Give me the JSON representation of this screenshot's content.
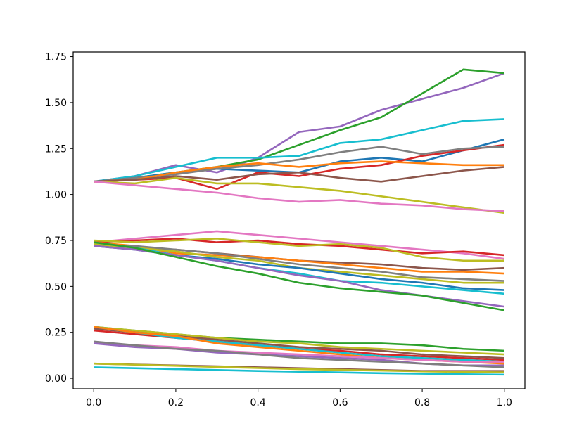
{
  "chart_data": {
    "type": "line",
    "title": "",
    "xlabel": "",
    "ylabel": "",
    "xlim": [
      -0.05,
      1.05
    ],
    "ylim": [
      -0.057,
      1.775
    ],
    "x_ticks": [
      0.0,
      0.2,
      0.4,
      0.6,
      0.8,
      1.0
    ],
    "x_tick_labels": [
      "0.0",
      "0.2",
      "0.4",
      "0.6",
      "0.8",
      "1.0"
    ],
    "y_ticks": [
      0.0,
      0.25,
      0.5,
      0.75,
      1.0,
      1.25,
      1.5,
      1.75
    ],
    "y_tick_labels": [
      "0.00",
      "0.25",
      "0.50",
      "0.75",
      "1.00",
      "1.25",
      "1.50",
      "1.75"
    ],
    "grid": false,
    "legend": "none",
    "palette": [
      "#1f77b4",
      "#ff7f0e",
      "#2ca02c",
      "#d62728",
      "#9467bd",
      "#8c564b",
      "#e377c2",
      "#7f7f7f",
      "#bcbd22",
      "#17becf"
    ],
    "x": [
      0.0,
      0.1,
      0.2,
      0.3,
      0.4,
      0.5,
      0.6,
      0.7,
      0.8,
      0.9,
      1.0
    ],
    "series": [
      {
        "color": "#9467bd",
        "values": [
          1.07,
          1.1,
          1.16,
          1.12,
          1.2,
          1.34,
          1.37,
          1.46,
          1.52,
          1.58,
          1.66
        ]
      },
      {
        "color": "#2ca02c",
        "values": [
          1.07,
          1.09,
          1.12,
          1.15,
          1.19,
          1.27,
          1.35,
          1.42,
          1.55,
          1.68,
          1.66
        ]
      },
      {
        "color": "#17becf",
        "values": [
          1.07,
          1.1,
          1.15,
          1.2,
          1.2,
          1.21,
          1.28,
          1.3,
          1.35,
          1.4,
          1.41
        ]
      },
      {
        "color": "#1f77b4",
        "values": [
          1.07,
          1.09,
          1.12,
          1.14,
          1.13,
          1.12,
          1.18,
          1.2,
          1.18,
          1.24,
          1.3
        ]
      },
      {
        "color": "#d62728",
        "values": [
          1.07,
          1.08,
          1.09,
          1.03,
          1.12,
          1.1,
          1.14,
          1.16,
          1.21,
          1.24,
          1.27
        ]
      },
      {
        "color": "#7f7f7f",
        "values": [
          1.07,
          1.09,
          1.11,
          1.14,
          1.16,
          1.19,
          1.23,
          1.26,
          1.22,
          1.25,
          1.26
        ]
      },
      {
        "color": "#ff7f0e",
        "values": [
          1.07,
          1.08,
          1.12,
          1.15,
          1.17,
          1.15,
          1.17,
          1.18,
          1.17,
          1.16,
          1.16
        ]
      },
      {
        "color": "#8c564b",
        "values": [
          1.07,
          1.08,
          1.1,
          1.08,
          1.11,
          1.12,
          1.09,
          1.07,
          1.1,
          1.13,
          1.15
        ]
      },
      {
        "color": "#bcbd22",
        "values": [
          1.07,
          1.06,
          1.09,
          1.06,
          1.06,
          1.04,
          1.02,
          0.99,
          0.96,
          0.93,
          0.9
        ]
      },
      {
        "color": "#e377c2",
        "values": [
          1.07,
          1.05,
          1.03,
          1.01,
          0.98,
          0.96,
          0.97,
          0.95,
          0.94,
          0.92,
          0.91
        ]
      },
      {
        "color": "#e377c2",
        "values": [
          0.74,
          0.76,
          0.78,
          0.8,
          0.78,
          0.76,
          0.74,
          0.72,
          0.7,
          0.68,
          0.65
        ]
      },
      {
        "color": "#d62728",
        "values": [
          0.74,
          0.75,
          0.76,
          0.74,
          0.75,
          0.73,
          0.72,
          0.7,
          0.68,
          0.69,
          0.67
        ]
      },
      {
        "color": "#bcbd22",
        "values": [
          0.75,
          0.74,
          0.75,
          0.76,
          0.74,
          0.72,
          0.73,
          0.71,
          0.66,
          0.64,
          0.64
        ]
      },
      {
        "color": "#8c564b",
        "values": [
          0.73,
          0.71,
          0.7,
          0.68,
          0.66,
          0.64,
          0.63,
          0.62,
          0.6,
          0.59,
          0.6
        ]
      },
      {
        "color": "#ff7f0e",
        "values": [
          0.74,
          0.72,
          0.68,
          0.67,
          0.66,
          0.64,
          0.62,
          0.6,
          0.58,
          0.58,
          0.57
        ]
      },
      {
        "color": "#7f7f7f",
        "values": [
          0.72,
          0.72,
          0.7,
          0.68,
          0.65,
          0.62,
          0.6,
          0.58,
          0.55,
          0.54,
          0.53
        ]
      },
      {
        "color": "#bcbd22",
        "values": [
          0.73,
          0.71,
          0.69,
          0.66,
          0.64,
          0.6,
          0.58,
          0.56,
          0.54,
          0.52,
          0.52
        ]
      },
      {
        "color": "#1f77b4",
        "values": [
          0.72,
          0.7,
          0.67,
          0.65,
          0.62,
          0.6,
          0.57,
          0.54,
          0.52,
          0.49,
          0.48
        ]
      },
      {
        "color": "#17becf",
        "values": [
          0.74,
          0.71,
          0.67,
          0.64,
          0.6,
          0.57,
          0.53,
          0.52,
          0.5,
          0.48,
          0.46
        ]
      },
      {
        "color": "#9467bd",
        "values": [
          0.72,
          0.7,
          0.67,
          0.64,
          0.6,
          0.56,
          0.53,
          0.48,
          0.45,
          0.42,
          0.39
        ]
      },
      {
        "color": "#2ca02c",
        "values": [
          0.74,
          0.71,
          0.66,
          0.61,
          0.57,
          0.52,
          0.49,
          0.47,
          0.45,
          0.41,
          0.37
        ]
      },
      {
        "color": "#2ca02c",
        "values": [
          0.28,
          0.26,
          0.24,
          0.22,
          0.21,
          0.2,
          0.19,
          0.19,
          0.18,
          0.16,
          0.15
        ]
      },
      {
        "color": "#bcbd22",
        "values": [
          0.28,
          0.26,
          0.24,
          0.22,
          0.2,
          0.19,
          0.17,
          0.16,
          0.15,
          0.14,
          0.13
        ]
      },
      {
        "color": "#8c564b",
        "values": [
          0.27,
          0.25,
          0.23,
          0.21,
          0.19,
          0.17,
          0.16,
          0.15,
          0.13,
          0.12,
          0.11
        ]
      },
      {
        "color": "#d62728",
        "values": [
          0.26,
          0.24,
          0.22,
          0.2,
          0.18,
          0.16,
          0.15,
          0.13,
          0.12,
          0.11,
          0.1
        ]
      },
      {
        "color": "#17becf",
        "values": [
          0.28,
          0.25,
          0.22,
          0.2,
          0.18,
          0.16,
          0.14,
          0.12,
          0.11,
          0.1,
          0.09
        ]
      },
      {
        "color": "#ff7f0e",
        "values": [
          0.28,
          0.25,
          0.23,
          0.19,
          0.17,
          0.15,
          0.13,
          0.11,
          0.1,
          0.09,
          0.08
        ]
      },
      {
        "color": "#e377c2",
        "values": [
          0.19,
          0.18,
          0.17,
          0.15,
          0.14,
          0.13,
          0.12,
          0.11,
          0.1,
          0.09,
          0.09
        ]
      },
      {
        "color": "#9467bd",
        "values": [
          0.19,
          0.17,
          0.16,
          0.14,
          0.13,
          0.12,
          0.11,
          0.1,
          0.08,
          0.07,
          0.07
        ]
      },
      {
        "color": "#7f7f7f",
        "values": [
          0.2,
          0.18,
          0.16,
          0.15,
          0.13,
          0.11,
          0.1,
          0.09,
          0.08,
          0.07,
          0.06
        ]
      },
      {
        "color": "#8c564b",
        "values": [
          0.08,
          0.075,
          0.07,
          0.065,
          0.06,
          0.055,
          0.05,
          0.045,
          0.04,
          0.04,
          0.04
        ]
      },
      {
        "color": "#bcbd22",
        "values": [
          0.08,
          0.074,
          0.068,
          0.062,
          0.056,
          0.05,
          0.046,
          0.042,
          0.038,
          0.035,
          0.032
        ]
      },
      {
        "color": "#17becf",
        "values": [
          0.06,
          0.055,
          0.05,
          0.045,
          0.04,
          0.036,
          0.032,
          0.028,
          0.025,
          0.022,
          0.02
        ]
      }
    ]
  }
}
